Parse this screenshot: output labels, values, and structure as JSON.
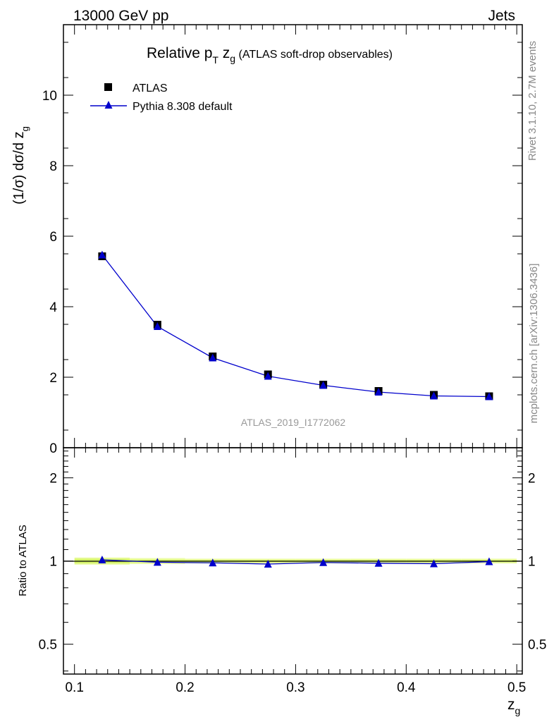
{
  "header": {
    "energy": "13000 GeV pp",
    "process": "Jets"
  },
  "side_labels": {
    "rivet": "Rivet 3.1.10,  2.7M events",
    "mcplots": "mcplots.cern.ch [arXiv:1306.3436]"
  },
  "colors": {
    "data_marker": "#000000",
    "mc_line": "#0000cc",
    "band_outer": "#ecfca8",
    "band_inner": "#d6f46a"
  },
  "chart_data": [
    {
      "type": "scatter",
      "title_parts": [
        "Relative p",
        "T",
        " z",
        "g",
        " (ATLAS soft-drop observables)"
      ],
      "ylabel_parts": [
        "(1/σ) dσ/d z",
        "g"
      ],
      "analysis_label": "ATLAS_2019_I1772062",
      "xlim": [
        0.09,
        0.505
      ],
      "ylim": [
        0,
        12
      ],
      "yticks": [
        "0",
        "2",
        "4",
        "6",
        "8",
        "10"
      ],
      "legend_placement": "top-left",
      "series": [
        {
          "name": "ATLAS",
          "marker": "square",
          "x": [
            0.125,
            0.175,
            0.225,
            0.275,
            0.325,
            0.375,
            0.425,
            0.475
          ],
          "y": [
            5.43,
            3.49,
            2.59,
            2.08,
            1.79,
            1.61,
            1.5,
            1.46
          ]
        },
        {
          "name": "Pythia 8.308 default",
          "marker": "triangle",
          "x": [
            0.125,
            0.175,
            0.225,
            0.275,
            0.325,
            0.375,
            0.425,
            0.475
          ],
          "y": [
            5.47,
            3.44,
            2.55,
            2.03,
            1.77,
            1.58,
            1.47,
            1.45
          ]
        }
      ]
    },
    {
      "type": "line",
      "ylabel": "Ratio to ATLAS",
      "xlabel_parts": [
        "z",
        "g"
      ],
      "xlim": [
        0.09,
        0.505
      ],
      "ylim": [
        0.39,
        2.57
      ],
      "log_scale_y": true,
      "xticks": [
        "0.1",
        "0.2",
        "0.3",
        "0.4",
        "0.5"
      ],
      "yticks": [
        {
          "value": 0.5,
          "label": "0.5"
        },
        {
          "value": 1,
          "label": "1"
        },
        {
          "value": 2,
          "label": "2"
        }
      ],
      "band": {
        "x_edges": [
          0.1,
          0.15,
          0.2,
          0.25,
          0.3,
          0.35,
          0.4,
          0.45,
          0.5
        ],
        "outer": [
          0.03,
          0.025,
          0.02,
          0.02,
          0.02,
          0.02,
          0.02,
          0.02
        ],
        "inner": [
          0.02,
          0.012,
          0.01,
          0.01,
          0.01,
          0.01,
          0.01,
          0.01
        ]
      },
      "series": [
        {
          "name": "Pythia 8.308 default",
          "x": [
            0.125,
            0.175,
            0.225,
            0.275,
            0.325,
            0.375,
            0.425,
            0.475
          ],
          "y": [
            1.01,
            0.99,
            0.985,
            0.975,
            0.988,
            0.982,
            0.978,
            0.995
          ]
        }
      ]
    }
  ]
}
